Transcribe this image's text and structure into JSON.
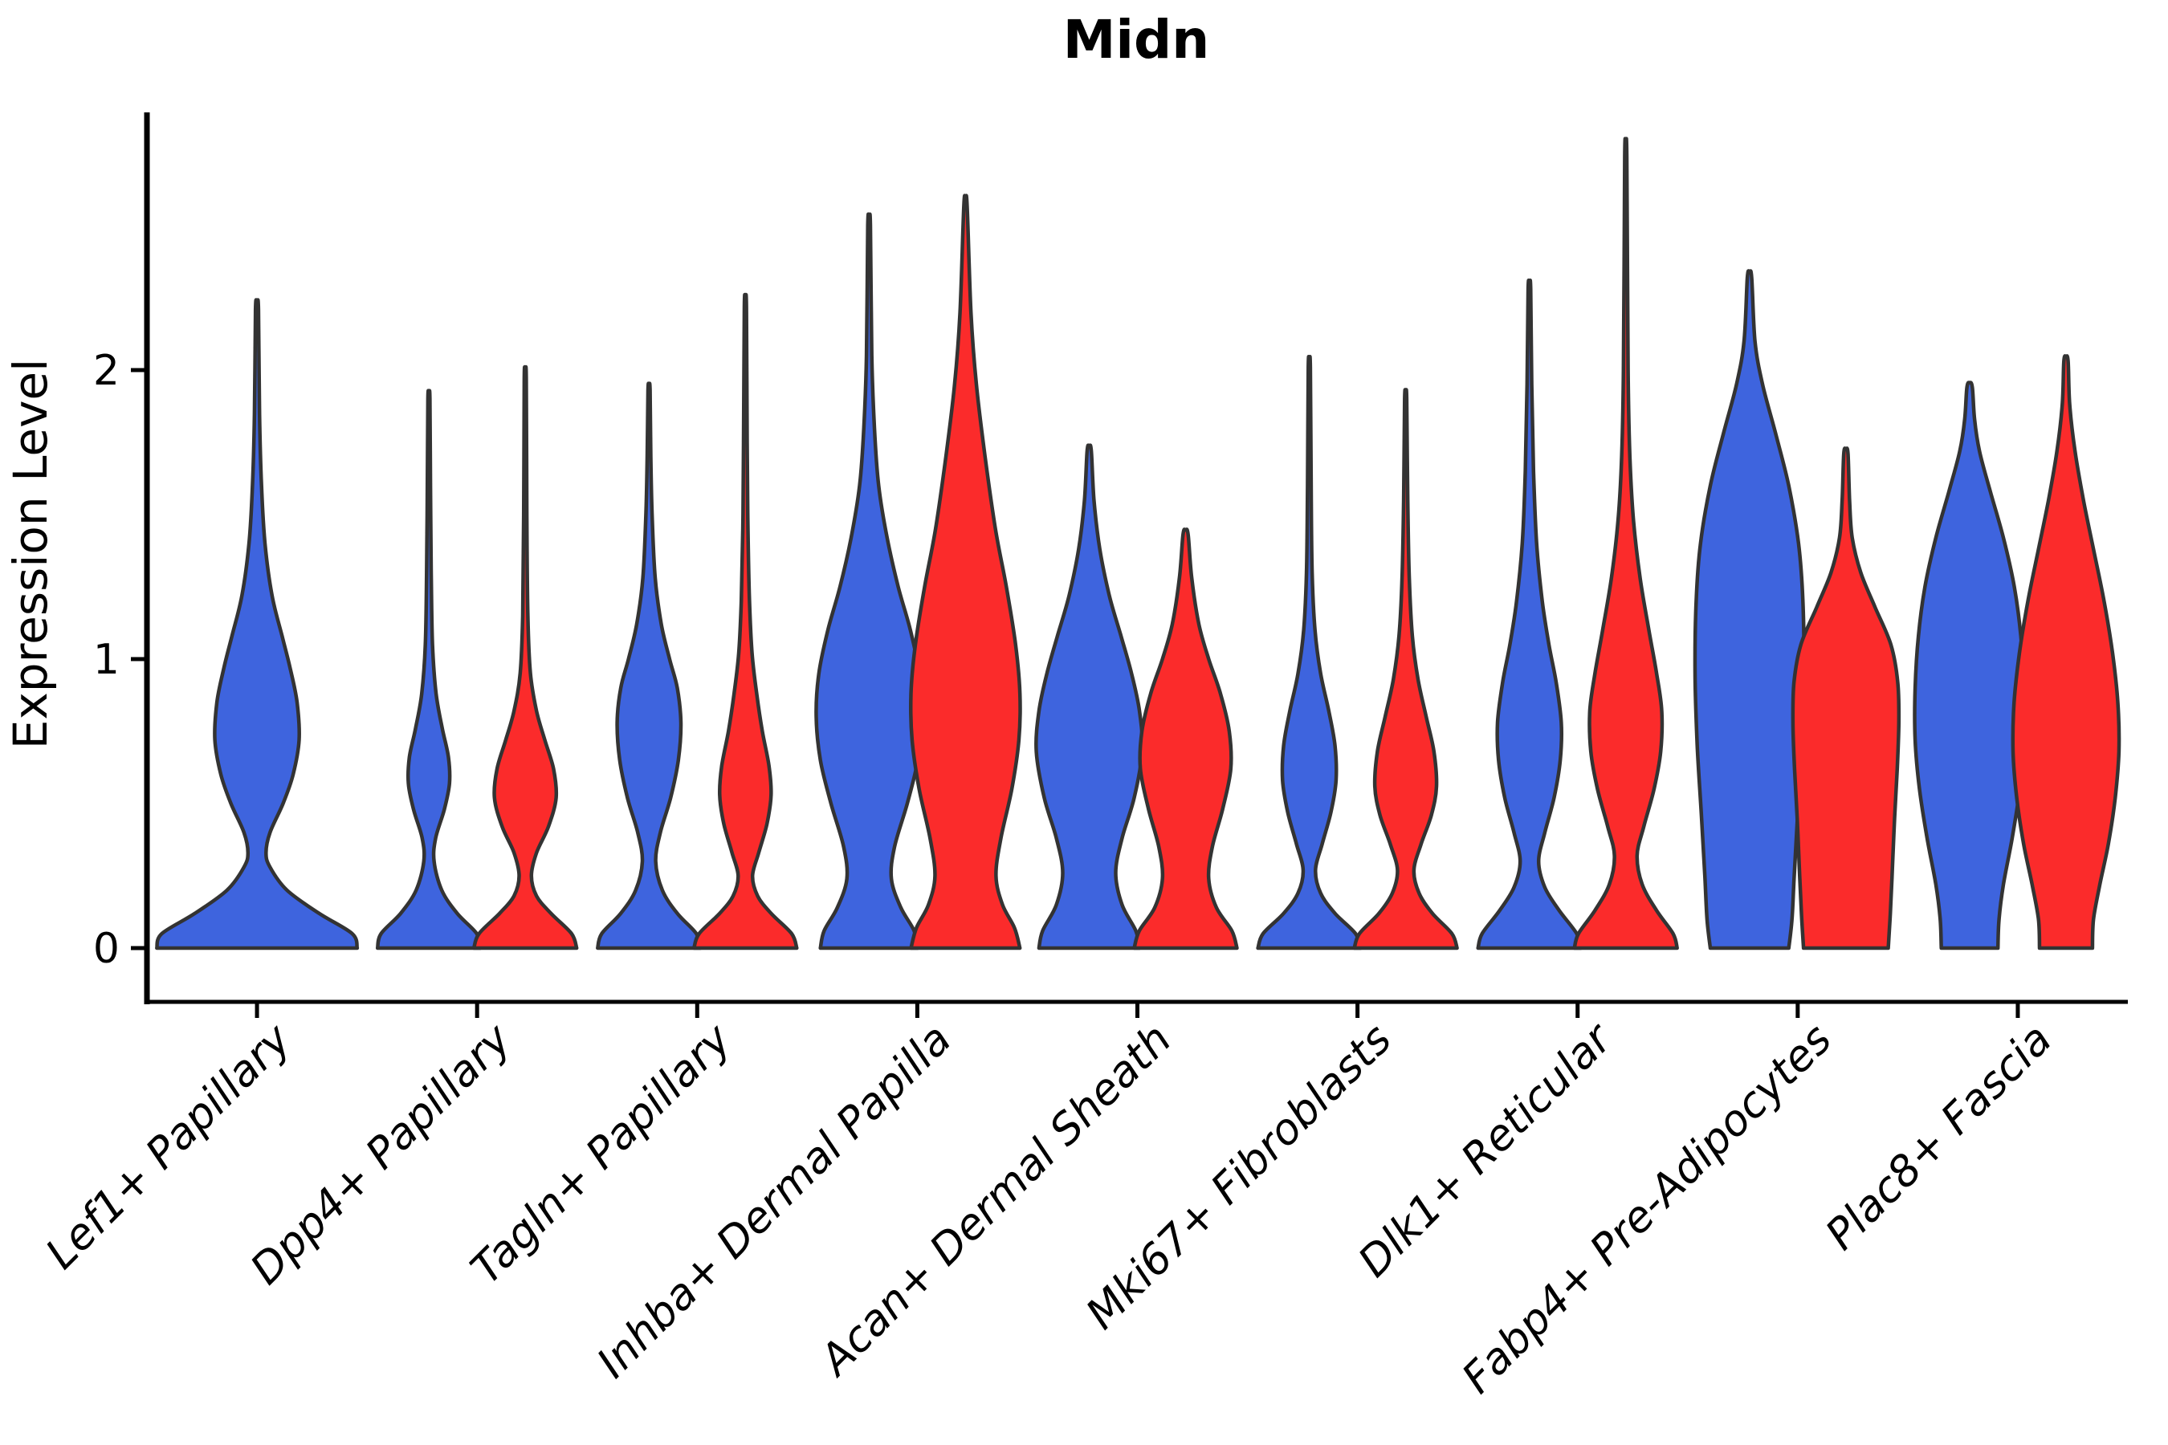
{
  "title": "Midn",
  "y_axis": {
    "label": "Expression Level",
    "ticks": [
      0,
      1,
      2
    ]
  },
  "x_axis": {
    "categories": [
      "Lef1+ Papillary",
      "Dpp4+ Papillary",
      "Tagln+ Papillary",
      "Inhba+ Dermal Papilla",
      "Acan+ Dermal Sheath",
      "Mki67+ Fibroblasts",
      "Dlk1+ Reticular",
      "Fabp4+ Pre-Adipocytes",
      "Plac8+ Fascia"
    ]
  },
  "colors": {
    "blue": "#3E64DE",
    "red": "#FB2B2B",
    "outline": "#333333",
    "axis": "#000000"
  },
  "chart_data": {
    "type": "violin",
    "title": "Midn",
    "ylabel": "Expression Level",
    "yticks": [
      0,
      1,
      2
    ],
    "ylim": [
      -0.19,
      2.88
    ],
    "grid": false,
    "legend": "none",
    "splits": [
      "blue",
      "red"
    ],
    "categories": [
      "Lef1+ Papillary",
      "Dpp4+ Papillary",
      "Tagln+ Papillary",
      "Inhba+ Dermal Papilla",
      "Acan+ Dermal Sheath",
      "Mki67+ Fibroblasts",
      "Dlk1+ Reticular",
      "Fabp4+ Pre-Adipocytes",
      "Plac8+ Fascia"
    ],
    "violins": [
      {
        "category": "Lef1+ Papillary",
        "split": "blue",
        "single": true,
        "width_scale": 1.95,
        "max": 2.21,
        "profile": [
          [
            0,
            1.0
          ],
          [
            0.05,
            0.95
          ],
          [
            0.12,
            0.62
          ],
          [
            0.2,
            0.3
          ],
          [
            0.28,
            0.13
          ],
          [
            0.33,
            0.09
          ],
          [
            0.4,
            0.13
          ],
          [
            0.5,
            0.26
          ],
          [
            0.6,
            0.36
          ],
          [
            0.72,
            0.42
          ],
          [
            0.85,
            0.4
          ],
          [
            0.97,
            0.33
          ],
          [
            1.08,
            0.25
          ],
          [
            1.22,
            0.15
          ],
          [
            1.4,
            0.08
          ],
          [
            1.6,
            0.045
          ],
          [
            1.85,
            0.025
          ],
          [
            2.21,
            0.015
          ]
        ]
      },
      {
        "category": "Dpp4+ Papillary",
        "split": "blue",
        "single": false,
        "width_scale": 1.0,
        "max": 1.9,
        "profile": [
          [
            0,
            1.0
          ],
          [
            0.05,
            0.93
          ],
          [
            0.12,
            0.55
          ],
          [
            0.2,
            0.25
          ],
          [
            0.3,
            0.1
          ],
          [
            0.38,
            0.13
          ],
          [
            0.48,
            0.3
          ],
          [
            0.57,
            0.4
          ],
          [
            0.66,
            0.38
          ],
          [
            0.76,
            0.26
          ],
          [
            0.88,
            0.14
          ],
          [
            1.05,
            0.07
          ],
          [
            1.3,
            0.045
          ],
          [
            1.6,
            0.03
          ],
          [
            1.9,
            0.02
          ]
        ]
      },
      {
        "category": "Dpp4+ Papillary",
        "split": "red",
        "single": false,
        "width_scale": 1.0,
        "max": 1.97,
        "profile": [
          [
            0,
            1.0
          ],
          [
            0.05,
            0.9
          ],
          [
            0.12,
            0.5
          ],
          [
            0.18,
            0.22
          ],
          [
            0.25,
            0.12
          ],
          [
            0.33,
            0.22
          ],
          [
            0.42,
            0.45
          ],
          [
            0.52,
            0.6
          ],
          [
            0.62,
            0.55
          ],
          [
            0.72,
            0.38
          ],
          [
            0.82,
            0.22
          ],
          [
            0.95,
            0.1
          ],
          [
            1.15,
            0.05
          ],
          [
            1.5,
            0.03
          ],
          [
            1.97,
            0.02
          ]
        ]
      },
      {
        "category": "Tagln+ Papillary",
        "split": "blue",
        "single": false,
        "width_scale": 1.0,
        "max": 1.93,
        "profile": [
          [
            0,
            1.0
          ],
          [
            0.05,
            0.92
          ],
          [
            0.12,
            0.55
          ],
          [
            0.2,
            0.26
          ],
          [
            0.3,
            0.13
          ],
          [
            0.4,
            0.22
          ],
          [
            0.52,
            0.42
          ],
          [
            0.65,
            0.57
          ],
          [
            0.78,
            0.62
          ],
          [
            0.9,
            0.55
          ],
          [
            1.0,
            0.4
          ],
          [
            1.12,
            0.24
          ],
          [
            1.28,
            0.12
          ],
          [
            1.5,
            0.06
          ],
          [
            1.7,
            0.035
          ],
          [
            1.93,
            0.02
          ]
        ]
      },
      {
        "category": "Tagln+ Papillary",
        "split": "red",
        "single": false,
        "width_scale": 1.0,
        "max": 2.22,
        "profile": [
          [
            0,
            1.0
          ],
          [
            0.05,
            0.9
          ],
          [
            0.12,
            0.5
          ],
          [
            0.18,
            0.24
          ],
          [
            0.25,
            0.14
          ],
          [
            0.33,
            0.26
          ],
          [
            0.43,
            0.42
          ],
          [
            0.53,
            0.5
          ],
          [
            0.63,
            0.46
          ],
          [
            0.75,
            0.33
          ],
          [
            0.88,
            0.22
          ],
          [
            1.02,
            0.13
          ],
          [
            1.2,
            0.08
          ],
          [
            1.45,
            0.05
          ],
          [
            1.75,
            0.035
          ],
          [
            2.22,
            0.02
          ]
        ]
      },
      {
        "category": "Inhba+ Dermal Papilla",
        "split": "blue",
        "single": false,
        "width_scale": 1.03,
        "max": 2.5,
        "profile": [
          [
            0,
            0.92
          ],
          [
            0.06,
            0.85
          ],
          [
            0.14,
            0.6
          ],
          [
            0.24,
            0.42
          ],
          [
            0.35,
            0.48
          ],
          [
            0.5,
            0.72
          ],
          [
            0.65,
            0.92
          ],
          [
            0.8,
            1.0
          ],
          [
            0.95,
            0.95
          ],
          [
            1.1,
            0.78
          ],
          [
            1.25,
            0.55
          ],
          [
            1.42,
            0.34
          ],
          [
            1.6,
            0.18
          ],
          [
            1.8,
            0.1
          ],
          [
            2.05,
            0.05
          ],
          [
            2.5,
            0.025
          ]
        ]
      },
      {
        "category": "Inhba+ Dermal Papilla",
        "split": "red",
        "single": false,
        "width_scale": 1.06,
        "max": 2.57,
        "profile": [
          [
            0,
            1.0
          ],
          [
            0.07,
            0.9
          ],
          [
            0.15,
            0.68
          ],
          [
            0.25,
            0.56
          ],
          [
            0.38,
            0.65
          ],
          [
            0.55,
            0.85
          ],
          [
            0.72,
            0.98
          ],
          [
            0.88,
            1.0
          ],
          [
            1.05,
            0.92
          ],
          [
            1.25,
            0.75
          ],
          [
            1.45,
            0.55
          ],
          [
            1.7,
            0.36
          ],
          [
            1.95,
            0.2
          ],
          [
            2.2,
            0.1
          ],
          [
            2.57,
            0.03
          ]
        ]
      },
      {
        "category": "Acan+ Dermal Sheath",
        "split": "blue",
        "single": false,
        "width_scale": 1.03,
        "max": 1.72,
        "profile": [
          [
            0,
            0.95
          ],
          [
            0.06,
            0.88
          ],
          [
            0.15,
            0.62
          ],
          [
            0.26,
            0.5
          ],
          [
            0.38,
            0.62
          ],
          [
            0.52,
            0.85
          ],
          [
            0.68,
            1.0
          ],
          [
            0.82,
            0.95
          ],
          [
            0.95,
            0.8
          ],
          [
            1.08,
            0.6
          ],
          [
            1.22,
            0.38
          ],
          [
            1.38,
            0.2
          ],
          [
            1.55,
            0.09
          ],
          [
            1.72,
            0.04
          ]
        ]
      },
      {
        "category": "Acan+ Dermal Sheath",
        "split": "red",
        "single": false,
        "width_scale": 1.0,
        "max": 1.43,
        "profile": [
          [
            0,
            1.0
          ],
          [
            0.06,
            0.9
          ],
          [
            0.14,
            0.6
          ],
          [
            0.24,
            0.45
          ],
          [
            0.35,
            0.52
          ],
          [
            0.48,
            0.72
          ],
          [
            0.62,
            0.88
          ],
          [
            0.75,
            0.85
          ],
          [
            0.88,
            0.68
          ],
          [
            1.0,
            0.45
          ],
          [
            1.12,
            0.26
          ],
          [
            1.28,
            0.12
          ],
          [
            1.43,
            0.05
          ]
        ]
      },
      {
        "category": "Mki67+ Fibroblasts",
        "split": "blue",
        "single": false,
        "width_scale": 1.0,
        "max": 2.01,
        "profile": [
          [
            0,
            1.0
          ],
          [
            0.05,
            0.9
          ],
          [
            0.12,
            0.5
          ],
          [
            0.19,
            0.22
          ],
          [
            0.27,
            0.12
          ],
          [
            0.36,
            0.25
          ],
          [
            0.47,
            0.42
          ],
          [
            0.58,
            0.52
          ],
          [
            0.7,
            0.5
          ],
          [
            0.82,
            0.38
          ],
          [
            0.95,
            0.22
          ],
          [
            1.1,
            0.11
          ],
          [
            1.3,
            0.055
          ],
          [
            1.6,
            0.035
          ],
          [
            2.01,
            0.02
          ]
        ]
      },
      {
        "category": "Mki67+ Fibroblasts",
        "split": "red",
        "single": false,
        "width_scale": 1.0,
        "max": 1.9,
        "profile": [
          [
            0,
            1.0
          ],
          [
            0.05,
            0.9
          ],
          [
            0.12,
            0.52
          ],
          [
            0.19,
            0.26
          ],
          [
            0.27,
            0.16
          ],
          [
            0.36,
            0.3
          ],
          [
            0.46,
            0.5
          ],
          [
            0.56,
            0.6
          ],
          [
            0.68,
            0.55
          ],
          [
            0.8,
            0.4
          ],
          [
            0.93,
            0.24
          ],
          [
            1.08,
            0.13
          ],
          [
            1.28,
            0.07
          ],
          [
            1.55,
            0.04
          ],
          [
            1.9,
            0.02
          ]
        ]
      },
      {
        "category": "Dlk1+ Reticular",
        "split": "blue",
        "single": false,
        "width_scale": 1.0,
        "max": 2.28,
        "profile": [
          [
            0,
            1.0
          ],
          [
            0.05,
            0.92
          ],
          [
            0.13,
            0.58
          ],
          [
            0.21,
            0.3
          ],
          [
            0.3,
            0.18
          ],
          [
            0.4,
            0.3
          ],
          [
            0.52,
            0.48
          ],
          [
            0.65,
            0.6
          ],
          [
            0.78,
            0.62
          ],
          [
            0.92,
            0.52
          ],
          [
            1.05,
            0.38
          ],
          [
            1.2,
            0.25
          ],
          [
            1.4,
            0.14
          ],
          [
            1.65,
            0.08
          ],
          [
            1.95,
            0.045
          ],
          [
            2.28,
            0.025
          ]
        ]
      },
      {
        "category": "Dlk1+ Reticular",
        "split": "red",
        "single": false,
        "width_scale": 1.0,
        "max": 2.74,
        "profile": [
          [
            0,
            1.0
          ],
          [
            0.05,
            0.92
          ],
          [
            0.13,
            0.6
          ],
          [
            0.22,
            0.32
          ],
          [
            0.32,
            0.22
          ],
          [
            0.42,
            0.35
          ],
          [
            0.55,
            0.55
          ],
          [
            0.68,
            0.68
          ],
          [
            0.82,
            0.7
          ],
          [
            0.95,
            0.6
          ],
          [
            1.1,
            0.45
          ],
          [
            1.28,
            0.28
          ],
          [
            1.48,
            0.15
          ],
          [
            1.7,
            0.08
          ],
          [
            2.0,
            0.045
          ],
          [
            2.74,
            0.02
          ]
        ]
      },
      {
        "category": "Fabp4+ Pre-Adipocytes",
        "split": "blue",
        "single": false,
        "width_scale": 1.06,
        "max": 2.32,
        "profile": [
          [
            0,
            0.72
          ],
          [
            0.1,
            0.78
          ],
          [
            0.25,
            0.82
          ],
          [
            0.45,
            0.88
          ],
          [
            0.7,
            0.96
          ],
          [
            0.95,
            1.0
          ],
          [
            1.2,
            0.98
          ],
          [
            1.4,
            0.9
          ],
          [
            1.6,
            0.72
          ],
          [
            1.78,
            0.48
          ],
          [
            1.95,
            0.24
          ],
          [
            2.1,
            0.1
          ],
          [
            2.32,
            0.04
          ]
        ]
      },
      {
        "category": "Fabp4+ Pre-Adipocytes",
        "split": "red",
        "single": false,
        "width_scale": 1.03,
        "max": 1.71,
        "profile": [
          [
            0,
            0.8
          ],
          [
            0.12,
            0.84
          ],
          [
            0.28,
            0.88
          ],
          [
            0.45,
            0.92
          ],
          [
            0.62,
            0.97
          ],
          [
            0.78,
            1.0
          ],
          [
            0.92,
            0.98
          ],
          [
            1.05,
            0.85
          ],
          [
            1.18,
            0.55
          ],
          [
            1.3,
            0.28
          ],
          [
            1.42,
            0.12
          ],
          [
            1.55,
            0.07
          ],
          [
            1.71,
            0.04
          ]
        ]
      },
      {
        "category": "Plac8+ Fascia",
        "split": "blue",
        "single": false,
        "width_scale": 1.06,
        "max": 1.94,
        "profile": [
          [
            0,
            0.52
          ],
          [
            0.1,
            0.54
          ],
          [
            0.22,
            0.62
          ],
          [
            0.38,
            0.78
          ],
          [
            0.55,
            0.92
          ],
          [
            0.72,
            1.0
          ],
          [
            0.9,
            1.0
          ],
          [
            1.08,
            0.94
          ],
          [
            1.25,
            0.82
          ],
          [
            1.42,
            0.62
          ],
          [
            1.58,
            0.38
          ],
          [
            1.72,
            0.18
          ],
          [
            1.83,
            0.09
          ],
          [
            1.94,
            0.05
          ]
        ]
      },
      {
        "category": "Plac8+ Fascia",
        "split": "red",
        "single": false,
        "width_scale": 1.03,
        "max": 2.03,
        "profile": [
          [
            0,
            0.5
          ],
          [
            0.1,
            0.52
          ],
          [
            0.22,
            0.64
          ],
          [
            0.36,
            0.8
          ],
          [
            0.52,
            0.93
          ],
          [
            0.68,
            1.0
          ],
          [
            0.85,
            0.98
          ],
          [
            1.02,
            0.88
          ],
          [
            1.2,
            0.72
          ],
          [
            1.38,
            0.52
          ],
          [
            1.55,
            0.33
          ],
          [
            1.72,
            0.17
          ],
          [
            1.88,
            0.07
          ],
          [
            2.03,
            0.04
          ]
        ]
      }
    ]
  }
}
